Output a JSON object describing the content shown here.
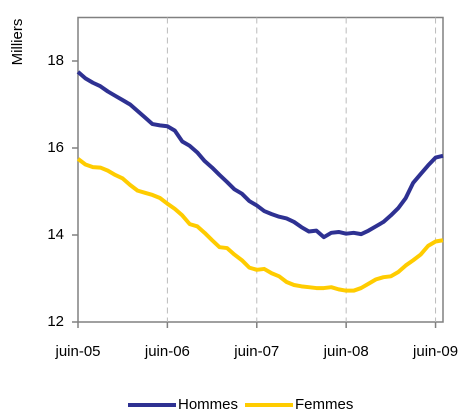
{
  "chart_data": {
    "type": "line",
    "y_label": "Milliers",
    "categories": [
      "juin-05",
      null,
      null,
      null,
      null,
      null,
      null,
      null,
      null,
      null,
      null,
      null,
      "juin-06",
      null,
      null,
      null,
      null,
      null,
      null,
      null,
      null,
      null,
      null,
      null,
      "juin-07",
      null,
      null,
      null,
      null,
      null,
      null,
      null,
      null,
      null,
      null,
      null,
      "juin-08",
      null,
      null,
      null,
      null,
      null,
      null,
      null,
      null,
      null,
      null,
      null,
      "juin-09",
      null
    ],
    "series": [
      {
        "name": "Hommes",
        "color": "#2e3192",
        "values": [
          17.75,
          17.6,
          17.5,
          17.42,
          17.3,
          17.2,
          17.1,
          17.0,
          16.85,
          16.7,
          16.55,
          16.52,
          16.5,
          16.4,
          16.15,
          16.05,
          15.9,
          15.7,
          15.55,
          15.38,
          15.22,
          15.05,
          14.95,
          14.78,
          14.68,
          14.55,
          14.48,
          14.42,
          14.38,
          14.3,
          14.18,
          14.08,
          14.1,
          13.95,
          14.05,
          14.07,
          14.03,
          14.05,
          14.02,
          14.1,
          14.2,
          14.3,
          14.45,
          14.62,
          14.85,
          15.2,
          15.4,
          15.6,
          15.78,
          15.82
        ]
      },
      {
        "name": "Femmes",
        "color": "#ffcc00",
        "values": [
          15.75,
          15.62,
          15.56,
          15.55,
          15.48,
          15.38,
          15.3,
          15.15,
          15.02,
          14.97,
          14.92,
          14.85,
          14.72,
          14.6,
          14.45,
          14.25,
          14.2,
          14.05,
          13.88,
          13.72,
          13.7,
          13.55,
          13.42,
          13.25,
          13.2,
          13.22,
          13.12,
          13.05,
          12.92,
          12.85,
          12.82,
          12.8,
          12.78,
          12.78,
          12.8,
          12.75,
          12.72,
          12.72,
          12.78,
          12.88,
          12.98,
          13.03,
          13.05,
          13.15,
          13.3,
          13.42,
          13.55,
          13.75,
          13.85,
          13.88
        ]
      }
    ],
    "ylim": [
      12,
      19
    ],
    "yticks": [
      12,
      14,
      16,
      18
    ],
    "grid": "x",
    "legend": "bottom"
  }
}
